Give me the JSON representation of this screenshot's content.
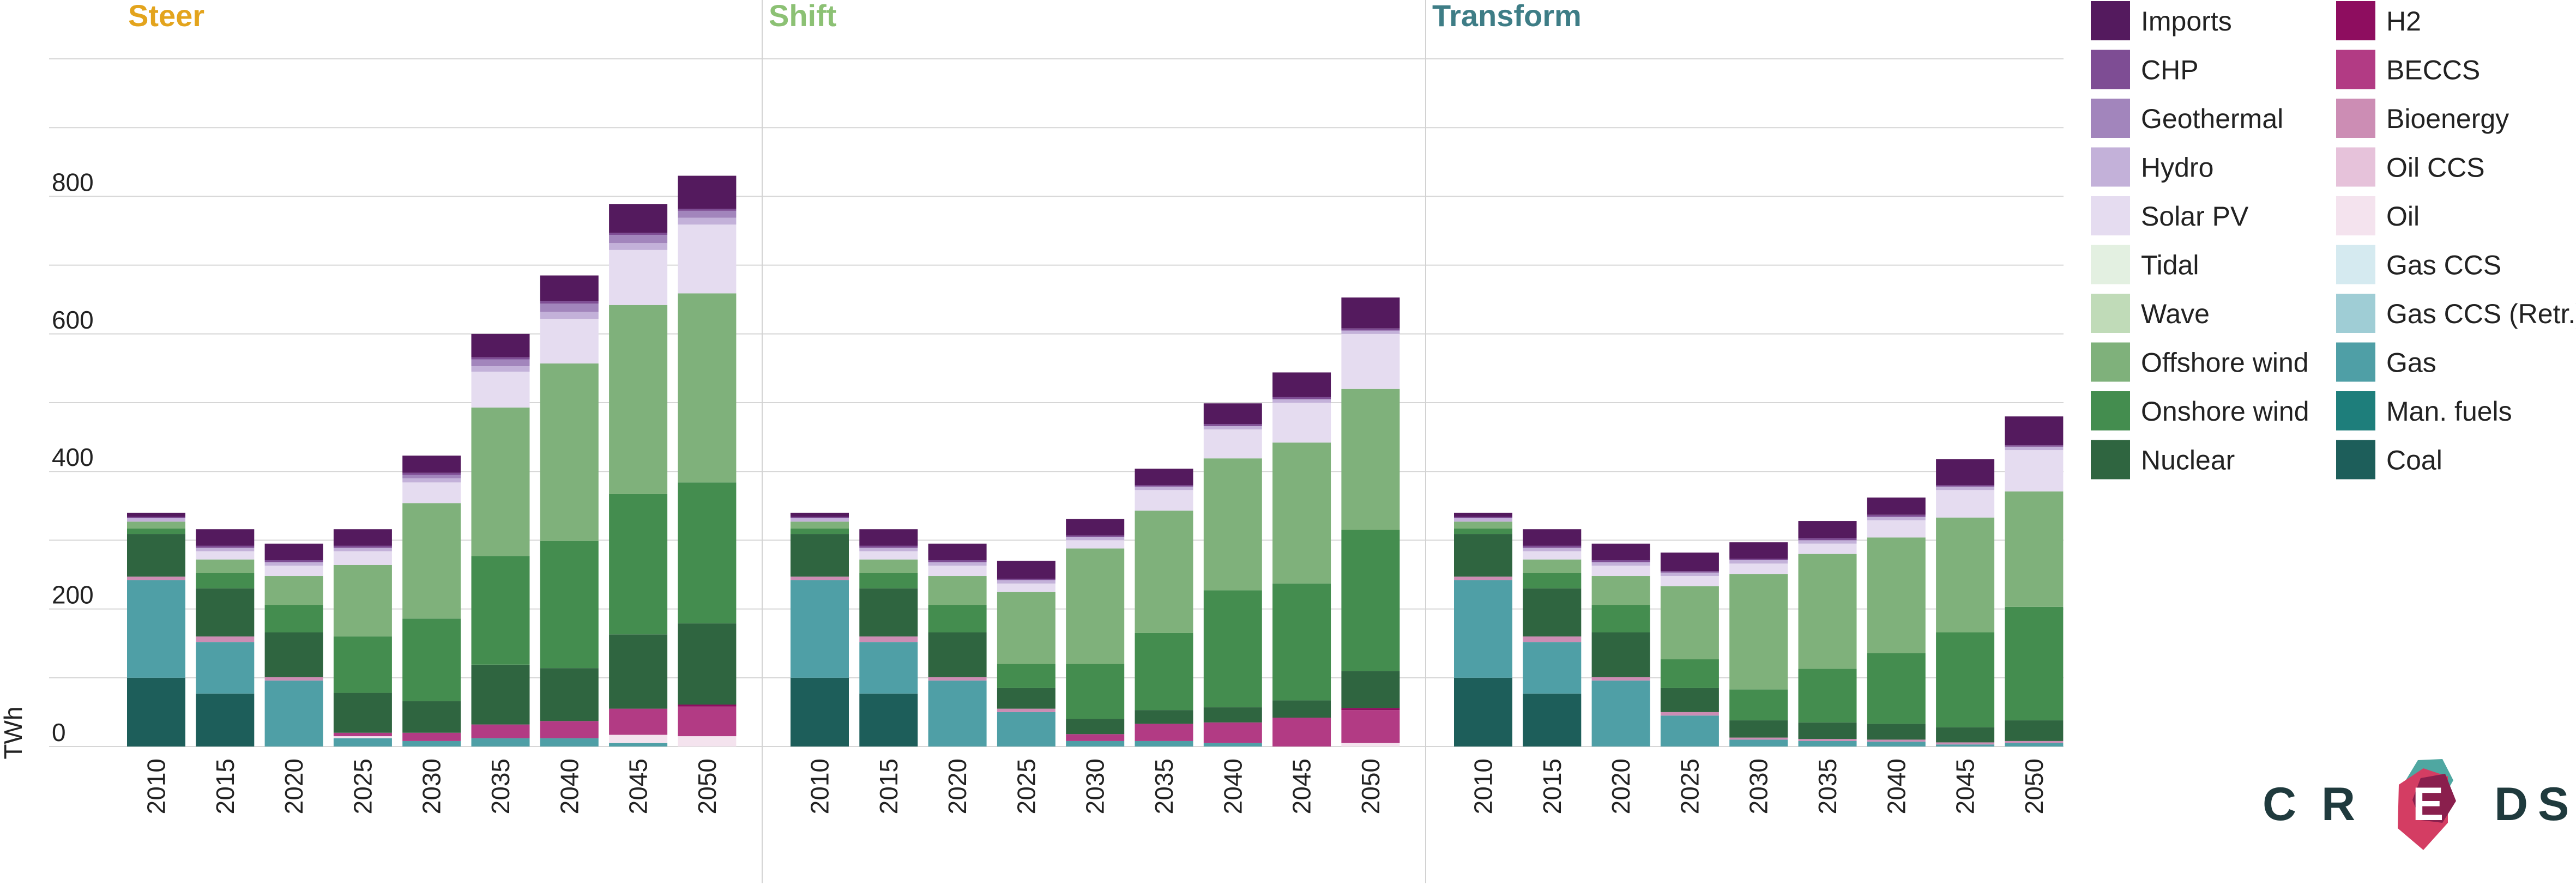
{
  "chart_data": {
    "type": "bar",
    "stacked": true,
    "ylabel": "TWh",
    "yticks": [
      0,
      200,
      400,
      600,
      800
    ],
    "ylim": [
      0,
      1000
    ],
    "grid": true,
    "legend": "right",
    "categories": [
      "2010",
      "2015",
      "2020",
      "2025",
      "2030",
      "2035",
      "2040",
      "2045",
      "2050"
    ],
    "series_order": [
      "Coal",
      "Man. fuels",
      "Gas",
      "Gas CCS (Retr.)",
      "Gas CCS",
      "Oil",
      "Oil CCS",
      "Bioenergy",
      "BECCS",
      "H2",
      "Nuclear",
      "Onshore wind",
      "Offshore wind",
      "Wave",
      "Tidal",
      "Solar PV",
      "Hydro",
      "Geothermal",
      "CHP",
      "Imports"
    ],
    "colors": {
      "Imports": "#541a5e",
      "CHP": "#7e4d94",
      "Geothermal": "#a285bc",
      "Hydro": "#c3b1d9",
      "Solar PV": "#e5dcf0",
      "Tidal": "#e3f0e1",
      "Wave": "#c0dbb8",
      "Offshore wind": "#7fb17b",
      "Onshore wind": "#448d4f",
      "Nuclear": "#2f6540",
      "H2": "#8e0d5f",
      "BECCS": "#b23b84",
      "Bioenergy": "#cc8db4",
      "Oil CCS": "#e6c2da",
      "Oil": "#f4e3ee",
      "Gas CCS": "#d5eaf0",
      "Gas CCS (Retr.)": "#9fcdd5",
      "Gas": "#4f9fa6",
      "Man. fuels": "#1e7e7b",
      "Coal": "#1d5e5a"
    },
    "panels": [
      {
        "title": "Steer",
        "title_color": "#e3a41d",
        "stacks": [
          {
            "Coal": 100,
            "Gas": 142,
            "Bioenergy": 5,
            "Nuclear": 62,
            "Onshore wind": 8,
            "Offshore wind": 10,
            "Hydro": 5,
            "CHP": 2,
            "Imports": 6
          },
          {
            "Coal": 77,
            "Gas": 75,
            "Bioenergy": 8,
            "Nuclear": 70,
            "Onshore wind": 22,
            "Offshore wind": 20,
            "Solar PV": 12,
            "Hydro": 5,
            "CHP": 3,
            "Imports": 24
          },
          {
            "Gas": 96,
            "Bioenergy": 5,
            "Nuclear": 65,
            "Onshore wind": 40,
            "Offshore wind": 42,
            "Solar PV": 15,
            "Hydro": 5,
            "CHP": 3,
            "Imports": 24
          },
          {
            "Gas": 12,
            "Oil": 3,
            "BECCS": 5,
            "Nuclear": 58,
            "Onshore wind": 82,
            "Offshore wind": 104,
            "Solar PV": 20,
            "Hydro": 5,
            "CHP": 3,
            "Imports": 24
          },
          {
            "Gas": 8,
            "BECCS": 12,
            "Nuclear": 46,
            "Onshore wind": 120,
            "Offshore wind": 168,
            "Solar PV": 30,
            "Hydro": 6,
            "Geothermal": 5,
            "CHP": 3,
            "Imports": 25
          },
          {
            "Gas": 12,
            "BECCS": 20,
            "Nuclear": 87,
            "Onshore wind": 158,
            "Offshore wind": 216,
            "Solar PV": 52,
            "Hydro": 8,
            "Geothermal": 10,
            "CHP": 3,
            "Imports": 34
          },
          {
            "Gas": 12,
            "BECCS": 25,
            "Nuclear": 77,
            "Onshore wind": 185,
            "Offshore wind": 258,
            "Solar PV": 65,
            "Hydro": 10,
            "Geothermal": 12,
            "CHP": 4,
            "Imports": 37
          },
          {
            "Gas": 5,
            "Oil": 12,
            "BECCS": 38,
            "Nuclear": 108,
            "Onshore wind": 204,
            "Offshore wind": 275,
            "Solar PV": 80,
            "Hydro": 10,
            "Geothermal": 12,
            "CHP": 3,
            "Imports": 42
          },
          {
            "Oil": 15,
            "BECCS": 43,
            "H2": 3,
            "Nuclear": 118,
            "Onshore wind": 205,
            "Offshore wind": 275,
            "Solar PV": 100,
            "Hydro": 10,
            "Geothermal": 10,
            "CHP": 3,
            "Imports": 48
          }
        ]
      },
      {
        "title": "Shift",
        "title_color": "#8cc174",
        "stacks": [
          {
            "Coal": 100,
            "Gas": 142,
            "Bioenergy": 5,
            "Nuclear": 62,
            "Onshore wind": 8,
            "Offshore wind": 10,
            "Hydro": 5,
            "CHP": 2,
            "Imports": 6
          },
          {
            "Coal": 77,
            "Gas": 75,
            "Bioenergy": 8,
            "Nuclear": 70,
            "Onshore wind": 22,
            "Offshore wind": 20,
            "Solar PV": 12,
            "Hydro": 5,
            "CHP": 3,
            "Imports": 24
          },
          {
            "Gas": 96,
            "Bioenergy": 5,
            "Nuclear": 65,
            "Onshore wind": 40,
            "Offshore wind": 42,
            "Solar PV": 15,
            "Hydro": 5,
            "CHP": 3,
            "Imports": 24
          },
          {
            "Gas": 50,
            "Bioenergy": 5,
            "Nuclear": 30,
            "Onshore wind": 35,
            "Offshore wind": 105,
            "Solar PV": 12,
            "Hydro": 5,
            "CHP": 2,
            "Imports": 26
          },
          {
            "Gas": 8,
            "BECCS": 10,
            "Nuclear": 22,
            "Onshore wind": 80,
            "Offshore wind": 168,
            "Solar PV": 12,
            "Hydro": 5,
            "CHP": 2,
            "Imports": 24
          },
          {
            "Gas": 8,
            "BECCS": 25,
            "Nuclear": 20,
            "Onshore wind": 112,
            "Offshore wind": 178,
            "Solar PV": 30,
            "Hydro": 5,
            "CHP": 2,
            "Imports": 24
          },
          {
            "Gas": 5,
            "BECCS": 30,
            "Nuclear": 22,
            "Onshore wind": 170,
            "Offshore wind": 192,
            "Solar PV": 42,
            "Hydro": 5,
            "CHP": 3,
            "Imports": 30
          },
          {
            "BECCS": 42,
            "Nuclear": 25,
            "Onshore wind": 170,
            "Offshore wind": 205,
            "Solar PV": 58,
            "Hydro": 5,
            "CHP": 3,
            "Imports": 36
          },
          {
            "Oil": 5,
            "BECCS": 48,
            "H2": 3,
            "Nuclear": 54,
            "Onshore wind": 205,
            "Offshore wind": 205,
            "Solar PV": 80,
            "Hydro": 5,
            "CHP": 3,
            "Imports": 45
          }
        ]
      },
      {
        "title": "Transform",
        "title_color": "#3e7d86",
        "stacks": [
          {
            "Coal": 100,
            "Gas": 142,
            "Bioenergy": 5,
            "Nuclear": 62,
            "Onshore wind": 8,
            "Offshore wind": 10,
            "Hydro": 5,
            "CHP": 2,
            "Imports": 6
          },
          {
            "Coal": 77,
            "Gas": 75,
            "Bioenergy": 8,
            "Nuclear": 70,
            "Onshore wind": 22,
            "Offshore wind": 20,
            "Solar PV": 12,
            "Hydro": 5,
            "CHP": 3,
            "Imports": 24
          },
          {
            "Gas": 96,
            "Bioenergy": 5,
            "Nuclear": 65,
            "Onshore wind": 40,
            "Offshore wind": 42,
            "Solar PV": 15,
            "Hydro": 5,
            "CHP": 3,
            "Imports": 24
          },
          {
            "Gas": 45,
            "Bioenergy": 5,
            "Nuclear": 35,
            "Onshore wind": 42,
            "Offshore wind": 106,
            "Solar PV": 15,
            "Hydro": 5,
            "CHP": 2,
            "Imports": 27
          },
          {
            "Gas": 10,
            "Bioenergy": 3,
            "Nuclear": 25,
            "Onshore wind": 45,
            "Offshore wind": 168,
            "Solar PV": 15,
            "Hydro": 5,
            "CHP": 2,
            "Imports": 24
          },
          {
            "Gas": 8,
            "Bioenergy": 3,
            "Nuclear": 24,
            "Onshore wind": 78,
            "Offshore wind": 167,
            "Solar PV": 15,
            "Hydro": 5,
            "CHP": 3,
            "Imports": 25
          },
          {
            "Gas": 7,
            "Bioenergy": 3,
            "Nuclear": 23,
            "Onshore wind": 103,
            "Offshore wind": 168,
            "Solar PV": 25,
            "Hydro": 5,
            "CHP": 3,
            "Imports": 25
          },
          {
            "Gas": 3,
            "Bioenergy": 3,
            "Nuclear": 22,
            "Onshore wind": 138,
            "Offshore wind": 167,
            "Solar PV": 40,
            "Hydro": 5,
            "CHP": 2,
            "Imports": 38
          },
          {
            "Gas": 5,
            "Bioenergy": 3,
            "Nuclear": 30,
            "Onshore wind": 165,
            "Offshore wind": 168,
            "Solar PV": 60,
            "Hydro": 5,
            "CHP": 2,
            "Imports": 42
          }
        ]
      }
    ]
  },
  "legend": {
    "left_column": [
      "Imports",
      "CHP",
      "Geothermal",
      "Hydro",
      "Solar PV",
      "Tidal",
      "Wave",
      "Offshore wind",
      "Onshore wind",
      "Nuclear"
    ],
    "right_column": [
      "H2",
      "BECCS",
      "Bioenergy",
      "Oil CCS",
      "Oil",
      "Gas CCS",
      "Gas CCS (Retr.)",
      "Gas",
      "Man. fuels",
      "Coal"
    ]
  },
  "logo": {
    "letters": [
      "C",
      "R",
      "E",
      "D",
      "S"
    ],
    "icon_colors": [
      "#4fa7a1",
      "#d43d63",
      "#8a1f4d"
    ]
  }
}
